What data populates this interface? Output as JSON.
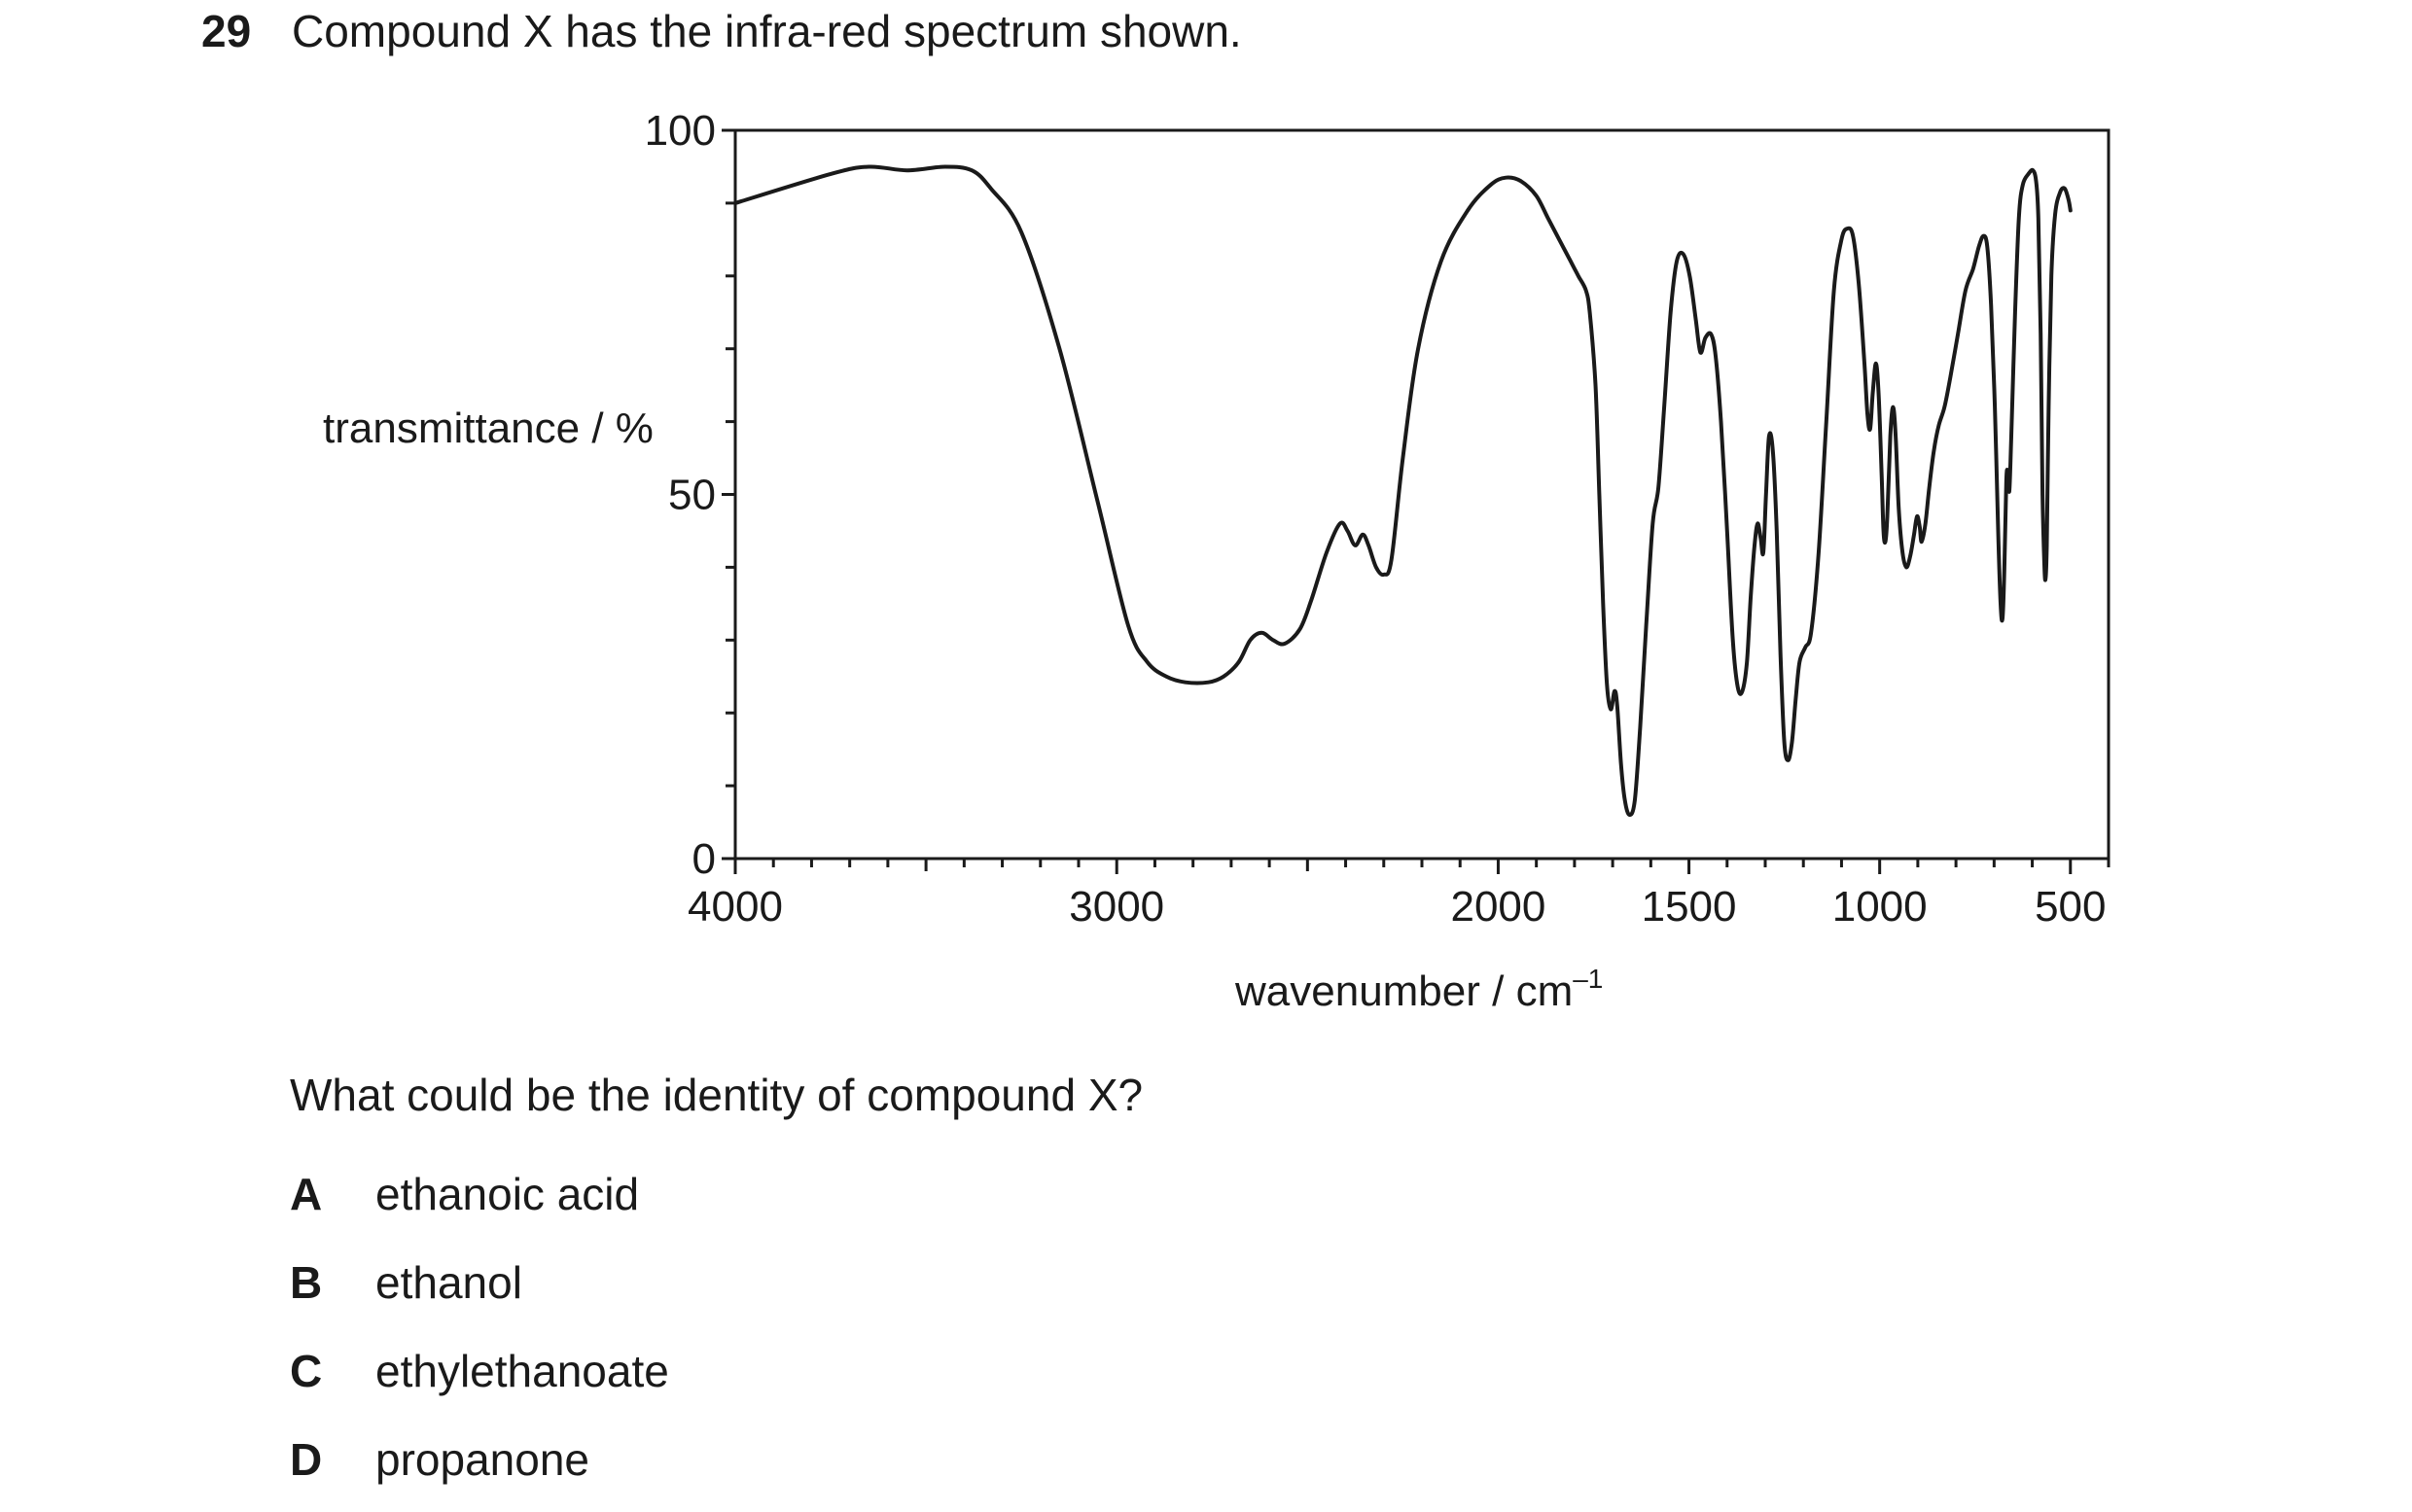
{
  "question": {
    "number": "29",
    "text": "Compound X has the infra-red spectrum shown.",
    "prompt": "What could be the identity of compound X?",
    "options": [
      {
        "letter": "A",
        "text": "ethanoic acid"
      },
      {
        "letter": "B",
        "text": "ethanol"
      },
      {
        "letter": "C",
        "text": "ethylethanoate"
      },
      {
        "letter": "D",
        "text": "propanone"
      }
    ]
  },
  "chart_data": {
    "type": "line",
    "title": "",
    "ylabel": "transmittance / %",
    "xlabel": "wavenumber / cm",
    "xlabel_superscript": "–1",
    "xlim": [
      4000,
      400
    ],
    "ylim": [
      0,
      100
    ],
    "x_ticks": [
      4000,
      3000,
      2000,
      1500,
      1000,
      500
    ],
    "x_tick_labels": [
      "4000",
      "3000",
      "2000",
      "1500",
      "1000",
      "500"
    ],
    "y_ticks": [
      0,
      50,
      100
    ],
    "y_tick_labels": [
      "0",
      "50",
      "100"
    ],
    "grid": false,
    "line_color": "#1a1a1a",
    "series": [
      {
        "name": "",
        "points": [
          [
            4000,
            90
          ],
          [
            3750,
            94
          ],
          [
            3650,
            95
          ],
          [
            3550,
            94.5
          ],
          [
            3450,
            95
          ],
          [
            3380,
            94.5
          ],
          [
            3330,
            92
          ],
          [
            3250,
            86
          ],
          [
            3150,
            70
          ],
          [
            3050,
            49
          ],
          [
            2970,
            32
          ],
          [
            2920,
            27
          ],
          [
            2870,
            25
          ],
          [
            2820,
            24.2
          ],
          [
            2760,
            24.2
          ],
          [
            2720,
            25
          ],
          [
            2680,
            27
          ],
          [
            2650,
            30
          ],
          [
            2620,
            31
          ],
          [
            2590,
            30
          ],
          [
            2560,
            29.5
          ],
          [
            2520,
            31.5
          ],
          [
            2490,
            35.5
          ],
          [
            2450,
            42
          ],
          [
            2415,
            46
          ],
          [
            2395,
            45
          ],
          [
            2375,
            43
          ],
          [
            2355,
            44.5
          ],
          [
            2340,
            43
          ],
          [
            2320,
            40
          ],
          [
            2300,
            39
          ],
          [
            2280,
            41
          ],
          [
            2250,
            55
          ],
          [
            2210,
            70
          ],
          [
            2150,
            82
          ],
          [
            2080,
            89
          ],
          [
            2020,
            92.5
          ],
          [
            1980,
            93.5
          ],
          [
            1940,
            93
          ],
          [
            1900,
            91
          ],
          [
            1870,
            88
          ],
          [
            1840,
            85
          ],
          [
            1810,
            82
          ],
          [
            1790,
            80
          ],
          [
            1770,
            78
          ],
          [
            1760,
            75
          ],
          [
            1745,
            65
          ],
          [
            1735,
            50
          ],
          [
            1725,
            35
          ],
          [
            1715,
            24
          ],
          [
            1705,
            20.5
          ],
          [
            1695,
            23
          ],
          [
            1688,
            21
          ],
          [
            1678,
            13
          ],
          [
            1668,
            8
          ],
          [
            1656,
            6
          ],
          [
            1642,
            8
          ],
          [
            1628,
            18
          ],
          [
            1612,
            32
          ],
          [
            1595,
            46
          ],
          [
            1580,
            51
          ],
          [
            1565,
            62
          ],
          [
            1548,
            75
          ],
          [
            1532,
            82
          ],
          [
            1515,
            83
          ],
          [
            1498,
            80
          ],
          [
            1482,
            74
          ],
          [
            1470,
            69.5
          ],
          [
            1457,
            71.5
          ],
          [
            1442,
            72
          ],
          [
            1430,
            69
          ],
          [
            1416,
            60
          ],
          [
            1400,
            45
          ],
          [
            1385,
            30
          ],
          [
            1372,
            23.5
          ],
          [
            1360,
            23
          ],
          [
            1348,
            27
          ],
          [
            1338,
            36
          ],
          [
            1328,
            43
          ],
          [
            1320,
            46
          ],
          [
            1312,
            44
          ],
          [
            1305,
            42
          ],
          [
            1298,
            50
          ],
          [
            1290,
            58
          ],
          [
            1280,
            56
          ],
          [
            1270,
            45
          ],
          [
            1260,
            28
          ],
          [
            1250,
            16
          ],
          [
            1240,
            13.5
          ],
          [
            1230,
            16
          ],
          [
            1220,
            22
          ],
          [
            1210,
            27
          ],
          [
            1195,
            29
          ],
          [
            1180,
            31
          ],
          [
            1160,
            42
          ],
          [
            1140,
            60
          ],
          [
            1120,
            78
          ],
          [
            1100,
            85
          ],
          [
            1085,
            86.5
          ],
          [
            1070,
            85.5
          ],
          [
            1055,
            79
          ],
          [
            1040,
            68
          ],
          [
            1032,
            61
          ],
          [
            1025,
            59
          ],
          [
            1018,
            64
          ],
          [
            1010,
            68
          ],
          [
            1003,
            64
          ],
          [
            995,
            53
          ],
          [
            990,
            45
          ],
          [
            985,
            43.5
          ],
          [
            980,
            47
          ],
          [
            972,
            58
          ],
          [
            965,
            62
          ],
          [
            958,
            58
          ],
          [
            950,
            48
          ],
          [
            940,
            42
          ],
          [
            930,
            40
          ],
          [
            920,
            41.5
          ],
          [
            910,
            44.5
          ],
          [
            902,
            47
          ],
          [
            895,
            45.5
          ],
          [
            890,
            43.5
          ],
          [
            880,
            46
          ],
          [
            870,
            51
          ],
          [
            858,
            56
          ],
          [
            845,
            59.5
          ],
          [
            830,
            62
          ],
          [
            815,
            66
          ],
          [
            795,
            72
          ],
          [
            775,
            78
          ],
          [
            755,
            81
          ],
          [
            740,
            84
          ],
          [
            728,
            85.5
          ],
          [
            718,
            84
          ],
          [
            708,
            76
          ],
          [
            698,
            62
          ],
          [
            690,
            46
          ],
          [
            683,
            35
          ],
          [
            678,
            33
          ],
          [
            673,
            40
          ],
          [
            668,
            52
          ],
          [
            664,
            53
          ],
          [
            660,
            50.5
          ],
          [
            655,
            58
          ],
          [
            645,
            75
          ],
          [
            635,
            88
          ],
          [
            625,
            92.5
          ],
          [
            610,
            94
          ],
          [
            598,
            94.5
          ],
          [
            590,
            93
          ],
          [
            584,
            88
          ],
          [
            578,
            72
          ],
          [
            573,
            50
          ],
          [
            568,
            40
          ],
          [
            565,
            38.5
          ],
          [
            562,
            43
          ],
          [
            557,
            62
          ],
          [
            550,
            80
          ],
          [
            540,
            88.5
          ],
          [
            527,
            91.5
          ],
          [
            515,
            92
          ],
          [
            505,
            90.5
          ],
          [
            500,
            89
          ]
        ]
      }
    ]
  }
}
